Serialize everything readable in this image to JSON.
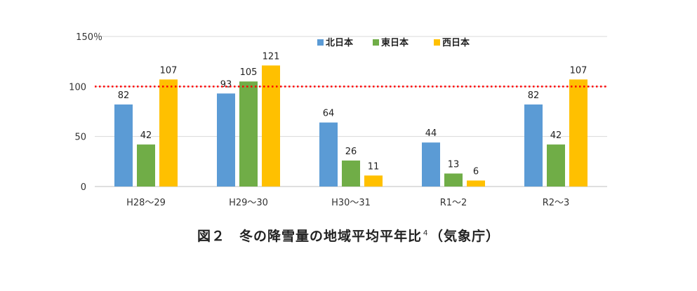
{
  "chart_data": {
    "type": "bar",
    "categories": [
      "H28～29",
      "H29～30",
      "H30～31",
      "R1～2",
      "R2～3"
    ],
    "series": [
      {
        "name": "北日本",
        "color": "#5B9BD5",
        "values": [
          82,
          93,
          64,
          44,
          82
        ]
      },
      {
        "name": "東日本",
        "color": "#70AD47",
        "values": [
          42,
          105,
          26,
          13,
          42
        ]
      },
      {
        "name": "西日本",
        "color": "#FFC000",
        "values": [
          107,
          121,
          11,
          6,
          107
        ]
      }
    ],
    "y_ticks": [
      "0",
      "50",
      "100",
      "150％"
    ],
    "ylim": [
      0,
      150
    ],
    "reference_line": {
      "value": 100,
      "color": "#FF0000",
      "style": "dotted"
    },
    "grid": true,
    "legend_position": "top"
  },
  "caption": {
    "text": "図２　冬の降雪量の地域平均平年比",
    "superscript": "４",
    "suffix": "（気象庁）"
  }
}
